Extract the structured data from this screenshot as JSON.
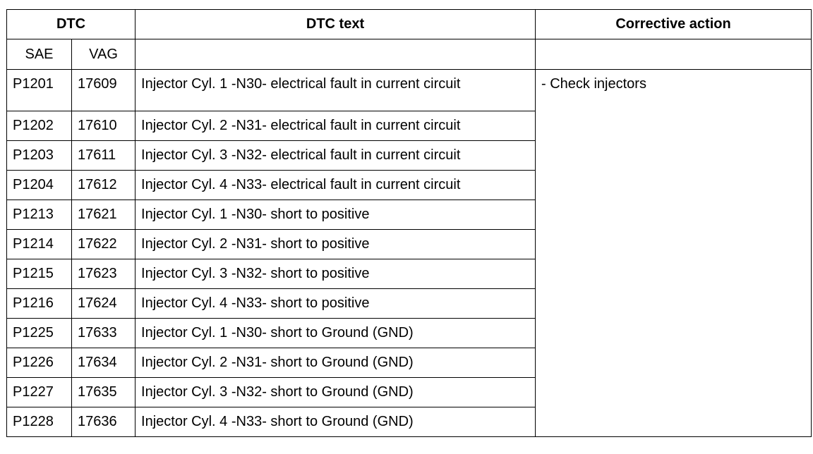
{
  "headers": {
    "dtc": "DTC",
    "dtc_text": "DTC text",
    "corrective_action": "Corrective action",
    "sae": "SAE",
    "vag": "VAG"
  },
  "corrective_action_text": "- Check injectors",
  "rows": [
    {
      "sae": "P1201",
      "vag": "17609",
      "text": "Injector Cyl. 1 -N30- electrical fault in current circuit"
    },
    {
      "sae": "P1202",
      "vag": "17610",
      "text": "Injector Cyl. 2 -N31- electrical fault in current circuit"
    },
    {
      "sae": "P1203",
      "vag": "17611",
      "text": "Injector Cyl. 3 -N32- electrical fault in current circuit"
    },
    {
      "sae": "P1204",
      "vag": "17612",
      "text": "Injector Cyl. 4 -N33- electrical fault in current circuit"
    },
    {
      "sae": "P1213",
      "vag": "17621",
      "text": "Injector Cyl. 1 -N30- short to positive"
    },
    {
      "sae": "P1214",
      "vag": "17622",
      "text": "Injector Cyl. 2 -N31- short to positive"
    },
    {
      "sae": "P1215",
      "vag": "17623",
      "text": "Injector Cyl. 3 -N32- short to positive"
    },
    {
      "sae": "P1216",
      "vag": "17624",
      "text": "Injector Cyl. 4 -N33- short to positive"
    },
    {
      "sae": "P1225",
      "vag": "17633",
      "text": "Injector Cyl. 1 -N30- short to Ground (GND)"
    },
    {
      "sae": "P1226",
      "vag": "17634",
      "text": "Injector Cyl. 2 -N31- short to Ground (GND)"
    },
    {
      "sae": "P1227",
      "vag": "17635",
      "text": "Injector Cyl. 3 -N32- short to Ground (GND)"
    },
    {
      "sae": "P1228",
      "vag": "17636",
      "text": "Injector Cyl. 4 -N33- short to Ground (GND)"
    }
  ]
}
